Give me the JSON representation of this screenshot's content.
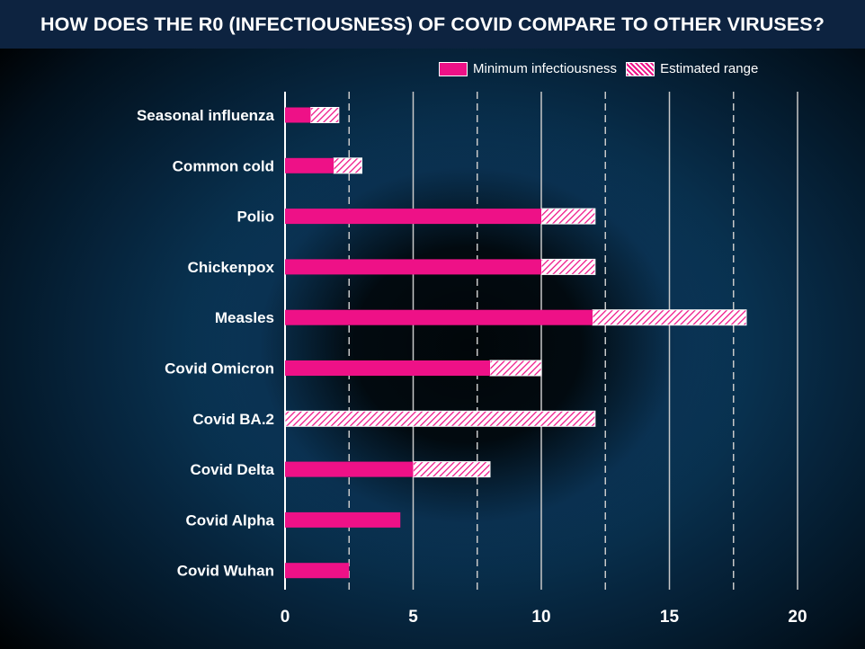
{
  "title": "HOW DOES THE R0 (INFECTIOUSNESS) OF COVID COMPARE TO OTHER VIRUSES?",
  "legend": {
    "min_label": "Minimum infectiousness",
    "range_label": "Estimated range"
  },
  "colors": {
    "title_bg": "#0d2340",
    "minimum": "#ee1187",
    "range_hatch": "#ee1187",
    "text": "#ffffff"
  },
  "chart_data": {
    "type": "bar",
    "orientation": "horizontal",
    "categories": [
      "Seasonal influenza",
      "Common cold",
      "Polio",
      "Chickenpox",
      "Measles",
      "Covid Omicron",
      "Covid BA.2",
      "Covid  Delta",
      "Covid  Alpha",
      "Covid Wuhan"
    ],
    "series": [
      {
        "name": "Minimum infectiousness",
        "values": [
          1,
          1.9,
          10,
          10,
          12,
          8,
          0,
          5,
          4.5,
          2.5
        ]
      },
      {
        "name": "Estimated range",
        "values": [
          2.1,
          3,
          12.1,
          12.1,
          18,
          10,
          12.1,
          8,
          4.5,
          2.5
        ]
      }
    ],
    "xticks": [
      0,
      5,
      10,
      15,
      20
    ],
    "xlim": [
      0,
      20
    ],
    "grid": "vertical solid at 5, 10, 15, 20; dashed at 2.5, 7.5, 12.5, 17.5",
    "legend_position": "top-right"
  }
}
